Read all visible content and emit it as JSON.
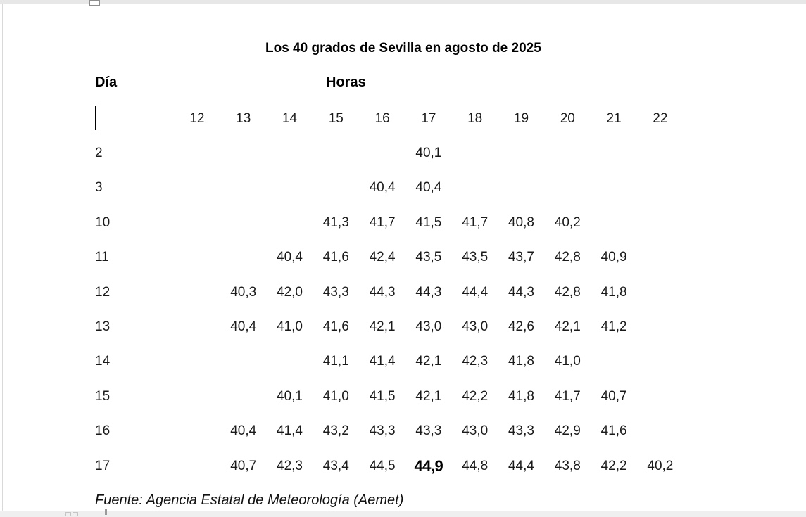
{
  "document": {
    "title": "Los 40 grados de Sevilla en agosto de 2025",
    "day_label": "Día",
    "hours_label": "Horas",
    "source_note": "Fuente: Agencia Estatal de Meteorología (Aemet)"
  },
  "chart_data": {
    "type": "table",
    "title": "Los 40 grados de Sevilla en agosto de 2025",
    "row_axis_label": "Día",
    "col_axis_label": "Horas",
    "columns": [
      "12",
      "13",
      "14",
      "15",
      "16",
      "17",
      "18",
      "19",
      "20",
      "21",
      "22"
    ],
    "rows": [
      {
        "day": "2",
        "values": [
          "",
          "",
          "",
          "",
          "",
          "40,1",
          "",
          "",
          "",
          "",
          ""
        ]
      },
      {
        "day": "3",
        "values": [
          "",
          "",
          "",
          "",
          "40,4",
          "40,4",
          "",
          "",
          "",
          "",
          ""
        ]
      },
      {
        "day": "10",
        "values": [
          "",
          "",
          "",
          "41,3",
          "41,7",
          "41,5",
          "41,7",
          "40,8",
          "40,2",
          "",
          ""
        ]
      },
      {
        "day": "11",
        "values": [
          "",
          "",
          "40,4",
          "41,6",
          "42,4",
          "43,5",
          "43,5",
          "43,7",
          "42,8",
          "40,9",
          ""
        ]
      },
      {
        "day": "12",
        "values": [
          "",
          "40,3",
          "42,0",
          "43,3",
          "44,3",
          "44,3",
          "44,4",
          "44,3",
          "42,8",
          "41,8",
          ""
        ]
      },
      {
        "day": "13",
        "values": [
          "",
          "40,4",
          "41,0",
          "41,6",
          "42,1",
          "43,0",
          "43,0",
          "42,6",
          "42,1",
          "41,2",
          ""
        ]
      },
      {
        "day": "14",
        "values": [
          "",
          "",
          "",
          "41,1",
          "41,4",
          "42,1",
          "42,3",
          "41,8",
          "41,0",
          "",
          ""
        ]
      },
      {
        "day": "15",
        "values": [
          "",
          "",
          "40,1",
          "41,0",
          "41,5",
          "42,1",
          "42,2",
          "41,8",
          "41,7",
          "40,7",
          ""
        ]
      },
      {
        "day": "16",
        "values": [
          "",
          "40,4",
          "41,4",
          "43,2",
          "43,3",
          "43,3",
          "43,0",
          "43,3",
          "42,9",
          "41,6",
          ""
        ]
      },
      {
        "day": "17",
        "values": [
          "",
          "40,7",
          "42,3",
          "43,4",
          "44,5",
          "44,9",
          "44,8",
          "44,4",
          "43,8",
          "42,2",
          "40,2"
        ]
      }
    ],
    "max_value": {
      "day": "17",
      "hour": "17",
      "value": "44,9",
      "bold": true
    },
    "source": "Fuente: Agencia Estatal de Meteorología (Aemet)"
  },
  "colors": {
    "text": "#1a1a1a",
    "background": "#ffffff",
    "chrome_strip": "#e7e7e7",
    "status_strip": "#efefef",
    "handle_border": "#8f8f8f"
  }
}
